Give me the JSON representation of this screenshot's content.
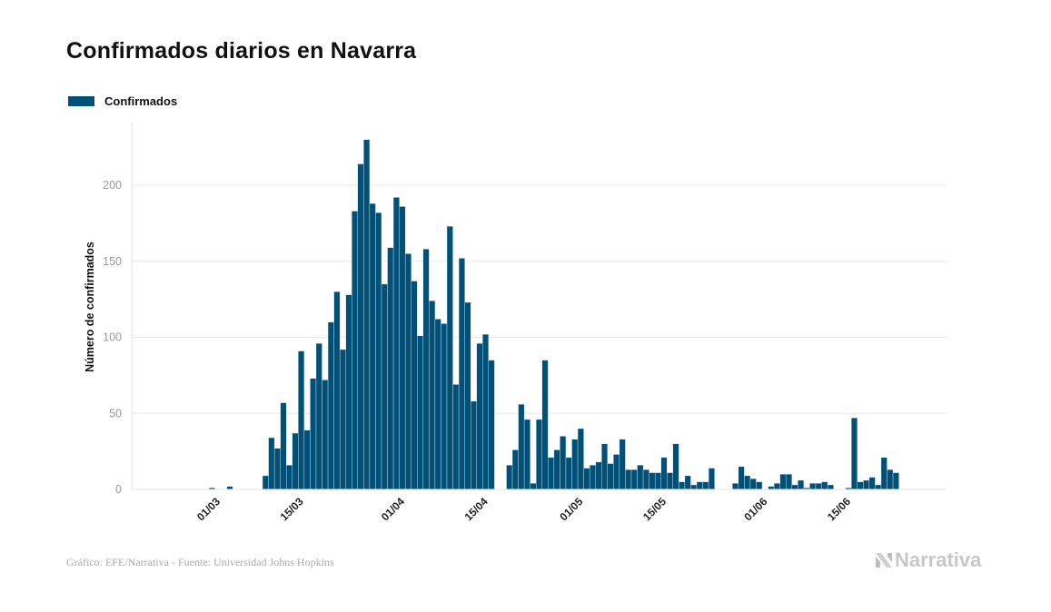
{
  "title": "Confirmados diarios en Navarra",
  "legend": [
    {
      "label": "Confirmados",
      "color": "#005077"
    }
  ],
  "footer": {
    "credit": "Gráfico: EFE/Narrativa - Fuente: Universidad Johns Hopkins",
    "logo_text": "Narrativa"
  },
  "chart_data": {
    "type": "bar",
    "title": "Confirmados diarios en Navarra",
    "xlabel": "",
    "ylabel": "Número de confirmados",
    "ylim": [
      0,
      240
    ],
    "yticks": [
      0,
      50,
      100,
      150,
      200
    ],
    "xticks": [
      "01/03",
      "15/03",
      "01/04",
      "15/04",
      "01/05",
      "15/05",
      "01/06",
      "15/06"
    ],
    "xlim": [
      "16/02",
      "02/07"
    ],
    "grid": "horizontal",
    "legend_position": "top-left",
    "series": [
      {
        "name": "Confirmados",
        "color": "#005077",
        "start": "22/02",
        "values": [
          0,
          0,
          0,
          0,
          0,
          0,
          0,
          1,
          0,
          0,
          2,
          0,
          0,
          0,
          0,
          0,
          9,
          34,
          27,
          57,
          16,
          37,
          91,
          39,
          73,
          96,
          72,
          110,
          130,
          92,
          128,
          183,
          214,
          230,
          188,
          182,
          135,
          159,
          192,
          186,
          155,
          137,
          101,
          158,
          124,
          112,
          109,
          173,
          69,
          152,
          123,
          58,
          96,
          102,
          85,
          0,
          0,
          16,
          26,
          56,
          46,
          4,
          46,
          85,
          21,
          26,
          35,
          21,
          33,
          40,
          14,
          16,
          18,
          30,
          17,
          23,
          33,
          13,
          13,
          16,
          13,
          11,
          11,
          21,
          11,
          30,
          5,
          9,
          3,
          5,
          5,
          14,
          0,
          0,
          0,
          4,
          15,
          9,
          7,
          5,
          0,
          2,
          4,
          10,
          10,
          3,
          6,
          1,
          4,
          4,
          5,
          3,
          0,
          0,
          1,
          47,
          5,
          6,
          8,
          3,
          21,
          13,
          11
        ]
      }
    ]
  }
}
